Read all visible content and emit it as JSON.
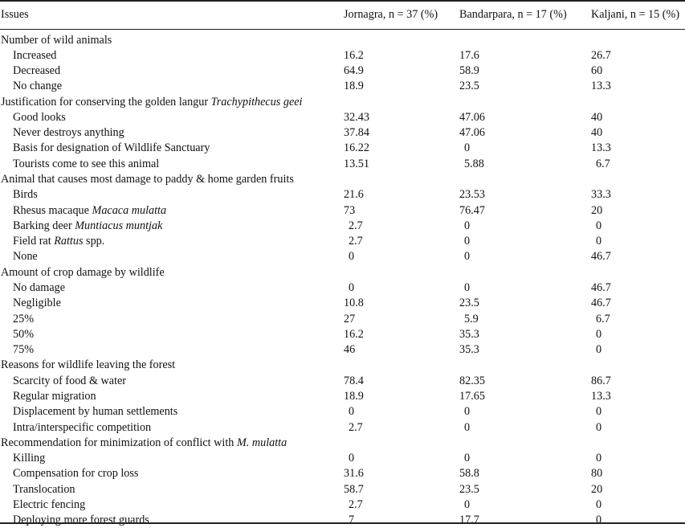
{
  "header": {
    "issues": "Issues",
    "col1": "Jornagra, n = 37 (%)",
    "col2": "Bandarpara, n = 17 (%)",
    "col3": "Kaljani, n = 15 (%)"
  },
  "sections": [
    {
      "title": [
        {
          "t": "Number of wild animals"
        }
      ],
      "rows": [
        {
          "label": [
            {
              "t": "Increased"
            }
          ],
          "v": [
            "16.2",
            "17.6",
            "26.7"
          ]
        },
        {
          "label": [
            {
              "t": "Decreased"
            }
          ],
          "v": [
            "64.9",
            "58.9",
            "60"
          ]
        },
        {
          "label": [
            {
              "t": "No change"
            }
          ],
          "v": [
            "18.9",
            "23.5",
            "13.3"
          ]
        }
      ]
    },
    {
      "title": [
        {
          "t": "Justification for conserving the golden langur "
        },
        {
          "t": "Trachypithecus geei",
          "i": true
        }
      ],
      "rows": [
        {
          "label": [
            {
              "t": "Good looks"
            }
          ],
          "v": [
            "32.43",
            "47.06",
            "40"
          ]
        },
        {
          "label": [
            {
              "t": "Never destroys anything"
            }
          ],
          "v": [
            "37.84",
            "47.06",
            "40"
          ]
        },
        {
          "label": [
            {
              "t": "Basis for designation of Wildlife Sanctuary"
            }
          ],
          "v": [
            "16.22",
            "0",
            "13.3"
          ]
        },
        {
          "label": [
            {
              "t": "Tourists come to see this animal"
            }
          ],
          "v": [
            "13.51",
            "5.88",
            "6.7"
          ]
        }
      ]
    },
    {
      "title": [
        {
          "t": "Animal that causes most damage to paddy & home garden fruits"
        }
      ],
      "rows": [
        {
          "label": [
            {
              "t": "Birds"
            }
          ],
          "v": [
            "21.6",
            "23.53",
            "33.3"
          ]
        },
        {
          "label": [
            {
              "t": "Rhesus macaque "
            },
            {
              "t": "Macaca mulatta",
              "i": true
            }
          ],
          "v": [
            "73",
            "76.47",
            "20"
          ]
        },
        {
          "label": [
            {
              "t": "Barking deer "
            },
            {
              "t": "Muntiacus muntjak",
              "i": true
            }
          ],
          "v": [
            "2.7",
            "0",
            "0"
          ]
        },
        {
          "label": [
            {
              "t": "Field rat "
            },
            {
              "t": "Rattus",
              "i": true
            },
            {
              "t": " spp."
            }
          ],
          "v": [
            "2.7",
            "0",
            "0"
          ]
        },
        {
          "label": [
            {
              "t": "None"
            }
          ],
          "v": [
            "0",
            "0",
            "46.7"
          ]
        }
      ]
    },
    {
      "title": [
        {
          "t": "Amount of crop damage by wildlife"
        }
      ],
      "rows": [
        {
          "label": [
            {
              "t": "No damage"
            }
          ],
          "v": [
            "0",
            "0",
            "46.7"
          ]
        },
        {
          "label": [
            {
              "t": "Negligible"
            }
          ],
          "v": [
            "10.8",
            "23.5",
            "46.7"
          ]
        },
        {
          "label": [
            {
              "t": "25%"
            }
          ],
          "v": [
            "27",
            "5.9",
            "6.7"
          ]
        },
        {
          "label": [
            {
              "t": "50%"
            }
          ],
          "v": [
            "16.2",
            "35.3",
            "0"
          ]
        },
        {
          "label": [
            {
              "t": "75%"
            }
          ],
          "v": [
            "46",
            "35.3",
            "0"
          ]
        }
      ]
    },
    {
      "title": [
        {
          "t": "Reasons for wildlife leaving the forest"
        }
      ],
      "rows": [
        {
          "label": [
            {
              "t": "Scarcity of food & water"
            }
          ],
          "v": [
            "78.4",
            "82.35",
            "86.7"
          ]
        },
        {
          "label": [
            {
              "t": "Regular migration"
            }
          ],
          "v": [
            "18.9",
            "17.65",
            "13.3"
          ]
        },
        {
          "label": [
            {
              "t": "Displacement by human settlements"
            }
          ],
          "v": [
            "0",
            "0",
            "0"
          ]
        },
        {
          "label": [
            {
              "t": "Intra/interspecific competition"
            }
          ],
          "v": [
            "2.7",
            "0",
            "0"
          ]
        }
      ]
    },
    {
      "title": [
        {
          "t": "Recommendation for minimization of conflict with "
        },
        {
          "t": "M. mulatta",
          "i": true
        }
      ],
      "rows": [
        {
          "label": [
            {
              "t": "Killing"
            }
          ],
          "v": [
            "0",
            "0",
            "0"
          ]
        },
        {
          "label": [
            {
              "t": "Compensation for crop loss"
            }
          ],
          "v": [
            "31.6",
            "58.8",
            "80"
          ]
        },
        {
          "label": [
            {
              "t": "Translocation"
            }
          ],
          "v": [
            "58.7",
            "23.5",
            "20"
          ]
        },
        {
          "label": [
            {
              "t": "Electric fencing"
            }
          ],
          "v": [
            "2.7",
            "0",
            "0"
          ]
        },
        {
          "label": [
            {
              "t": "Deploying more forest guards"
            }
          ],
          "v": [
            "7",
            "17.7",
            "0"
          ]
        }
      ]
    }
  ]
}
